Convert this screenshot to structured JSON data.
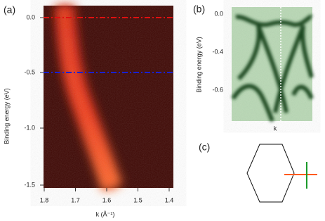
{
  "panel_a": {
    "label": "(a)",
    "y_label": "Binding energy (eV)",
    "x_label": "k (Å⁻¹)",
    "y_ticks": [
      "0.0",
      "-0.5",
      "-1.0",
      "-1.5"
    ],
    "x_ticks": [
      "1.8",
      "1.7",
      "1.6",
      "1.5",
      "1.4"
    ]
  },
  "panel_b": {
    "label": "(b)",
    "y_label": "Binding energy (eV)",
    "x_label": "k",
    "y_ticks": [
      "0.0",
      "-0.4",
      "-0.6"
    ]
  },
  "panel_c": {
    "label": "(c)"
  }
}
